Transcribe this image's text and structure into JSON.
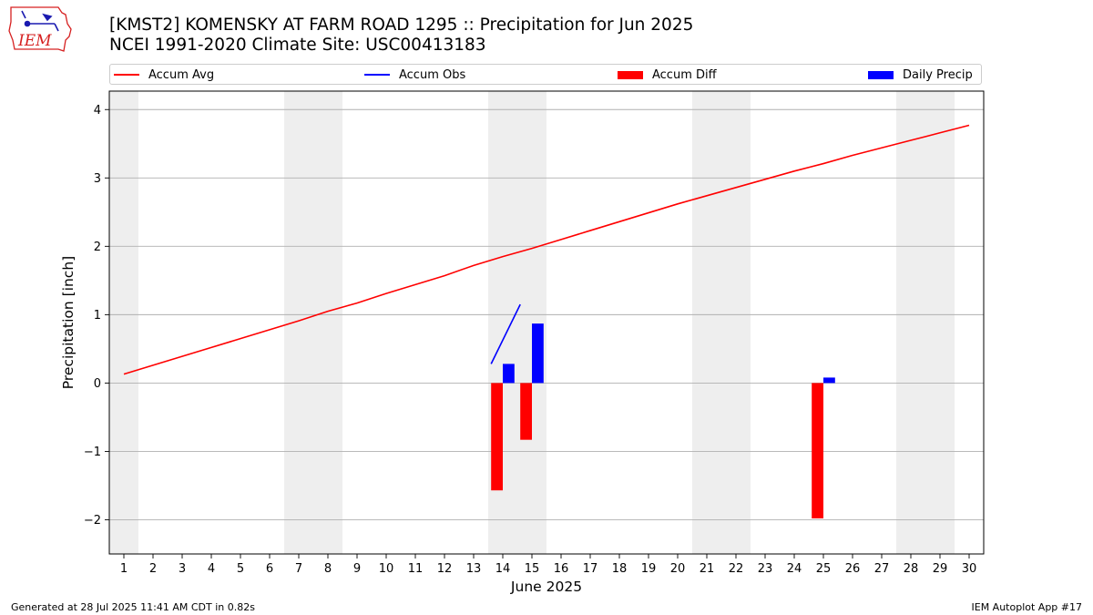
{
  "header": {
    "title_line1": "[KMST2] KOMENSKY AT FARM ROAD 1295 :: Precipitation for Jun 2025",
    "title_line2": "NCEI 1991-2020 Climate Site: USC00413183"
  },
  "logo": {
    "text": "IEM",
    "icon": "iem-iowa-logo",
    "color": "#d62020"
  },
  "footer": {
    "left": "Generated at 28 Jul 2025 11:41 AM CDT in 0.82s",
    "right": "IEM Autoplot App #17"
  },
  "chart_data": {
    "type": "bar",
    "xlabel": "June 2025",
    "ylabel": "Precipitation [inch]",
    "xlim": [
      0.5,
      30.5
    ],
    "ylim": [
      -2.5,
      4.27
    ],
    "x_ticks": [
      1,
      2,
      3,
      4,
      5,
      6,
      7,
      8,
      9,
      10,
      11,
      12,
      13,
      14,
      15,
      16,
      17,
      18,
      19,
      20,
      21,
      22,
      23,
      24,
      25,
      26,
      27,
      28,
      29,
      30
    ],
    "y_ticks": [
      -2,
      -1,
      0,
      1,
      2,
      3,
      4
    ],
    "y_tick_labels": [
      "−2",
      "−1",
      "0",
      "1",
      "2",
      "3",
      "4"
    ],
    "grid": "horizontal",
    "legend_position": "top",
    "weekend_bands": [
      [
        0.5,
        1.5
      ],
      [
        6.5,
        8.5
      ],
      [
        13.5,
        15.5
      ],
      [
        20.5,
        22.5
      ],
      [
        27.5,
        29.5
      ]
    ],
    "colors": {
      "accum_avg": "#ff0000",
      "accum_obs": "#0000ff",
      "accum_diff": "#ff0000",
      "daily_precip": "#0000ff",
      "band": "#eeeeee",
      "grid": "#b0b0b0"
    },
    "series": [
      {
        "name": "Accum Avg",
        "kind": "line",
        "x": [
          1,
          2,
          3,
          4,
          5,
          6,
          7,
          8,
          9,
          10,
          11,
          12,
          13,
          14,
          15,
          16,
          17,
          18,
          19,
          20,
          21,
          22,
          23,
          24,
          25,
          26,
          27,
          28,
          29,
          30
        ],
        "values": [
          0.13,
          0.26,
          0.39,
          0.52,
          0.65,
          0.78,
          0.91,
          1.05,
          1.17,
          1.31,
          1.44,
          1.57,
          1.72,
          1.85,
          1.97,
          2.1,
          2.23,
          2.36,
          2.49,
          2.62,
          2.74,
          2.86,
          2.98,
          3.1,
          3.21,
          3.33,
          3.44,
          3.55,
          3.66,
          3.77
        ]
      },
      {
        "name": "Accum Obs",
        "kind": "line",
        "x": [
          14,
          15
        ],
        "values": [
          0.28,
          1.15
        ]
      },
      {
        "name": "Accum Diff",
        "kind": "bar",
        "x": [
          14,
          15,
          25
        ],
        "values": [
          -1.57,
          -0.83,
          -1.98
        ]
      },
      {
        "name": "Daily Precip",
        "kind": "bar",
        "x": [
          14,
          15,
          25
        ],
        "values": [
          0.28,
          0.87,
          0.08
        ]
      }
    ]
  }
}
